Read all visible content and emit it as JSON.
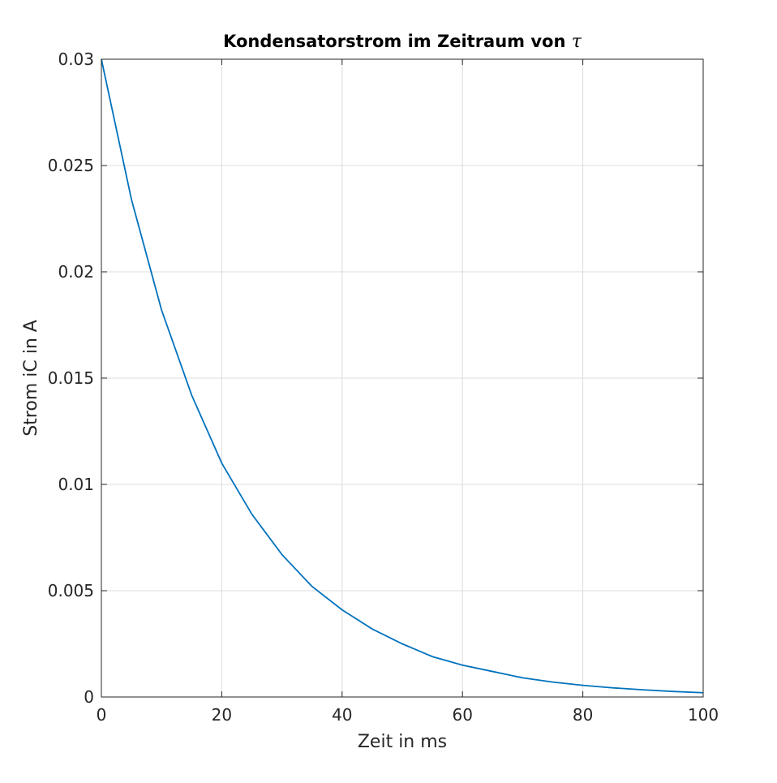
{
  "chart_data": {
    "type": "line",
    "title": "Kondensatorstrom im Zeitraum von",
    "title_symbol": "τ",
    "xlabel": "Zeit in ms",
    "ylabel": "Strom iC in A",
    "xlim": [
      0,
      100
    ],
    "ylim": [
      0,
      0.03
    ],
    "x_ticks": [
      0,
      20,
      40,
      60,
      80,
      100
    ],
    "x_tick_labels": [
      "0",
      "20",
      "40",
      "60",
      "80",
      "100"
    ],
    "y_ticks": [
      0,
      0.005,
      0.01,
      0.015,
      0.02,
      0.025,
      0.03
    ],
    "y_tick_labels": [
      "0",
      "0.005",
      "0.01",
      "0.015",
      "0.02",
      "0.025",
      "0.03"
    ],
    "grid": true,
    "line_color": "#0072BD",
    "series": [
      {
        "x": [
          0,
          5,
          10,
          15,
          20,
          25,
          30,
          35,
          40,
          45,
          50,
          55,
          60,
          65,
          70,
          75,
          80,
          85,
          90,
          95,
          100
        ],
        "y": [
          0.03,
          0.0234,
          0.0182,
          0.0142,
          0.011,
          0.0086,
          0.0067,
          0.0052,
          0.0041,
          0.0032,
          0.0025,
          0.0019,
          0.0015,
          0.0012,
          0.0009,
          0.0007,
          0.00055,
          0.00043,
          0.00034,
          0.00026,
          0.0002
        ]
      }
    ]
  }
}
